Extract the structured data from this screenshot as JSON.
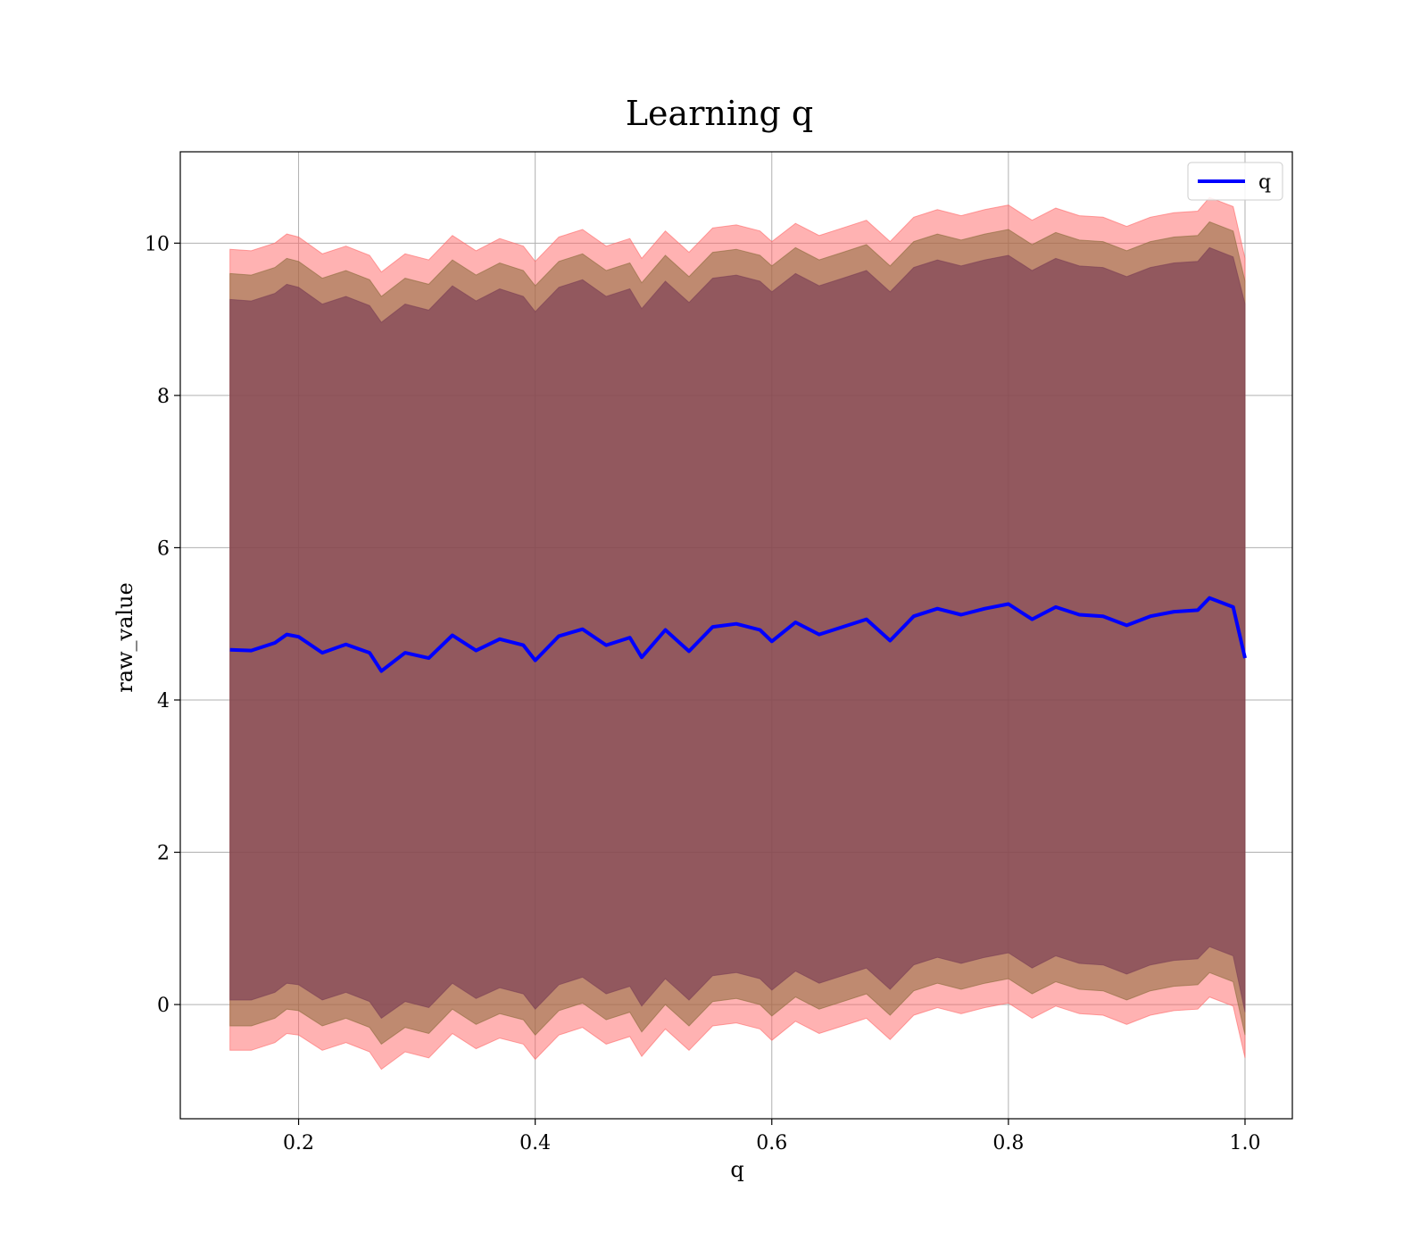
{
  "chart_data": {
    "type": "area",
    "title": "Learning q",
    "xlabel": "q",
    "ylabel": "raw_value",
    "xlim": [
      0.1,
      1.04
    ],
    "ylim": [
      -1.5,
      11.2
    ],
    "xticks": [
      0.2,
      0.4,
      0.6,
      0.8,
      1.0
    ],
    "xtick_labels": [
      "0.2",
      "0.4",
      "0.6",
      "0.8",
      "1.0"
    ],
    "yticks": [
      0,
      2,
      4,
      6,
      8,
      10
    ],
    "ytick_labels": [
      "0",
      "2",
      "4",
      "6",
      "8",
      "10"
    ],
    "grid": true,
    "legend": {
      "position": "top-right",
      "entries": [
        "q"
      ]
    },
    "series": [
      {
        "name": "q",
        "color": "#0000ff",
        "x": [
          0.142,
          0.16,
          0.18,
          0.19,
          0.2,
          0.22,
          0.24,
          0.26,
          0.27,
          0.29,
          0.31,
          0.33,
          0.35,
          0.37,
          0.39,
          0.4,
          0.42,
          0.44,
          0.46,
          0.48,
          0.49,
          0.51,
          0.53,
          0.55,
          0.57,
          0.59,
          0.6,
          0.62,
          0.64,
          0.66,
          0.68,
          0.7,
          0.72,
          0.74,
          0.76,
          0.78,
          0.8,
          0.82,
          0.84,
          0.86,
          0.88,
          0.9,
          0.92,
          0.94,
          0.96,
          0.97,
          0.99,
          1.0
        ],
        "y": [
          4.66,
          4.65,
          4.75,
          4.86,
          4.83,
          4.62,
          4.73,
          4.62,
          4.38,
          4.62,
          4.55,
          4.85,
          4.65,
          4.8,
          4.72,
          4.52,
          4.84,
          4.93,
          4.72,
          4.82,
          4.56,
          4.92,
          4.64,
          4.96,
          5.0,
          4.92,
          4.77,
          5.02,
          4.86,
          4.96,
          5.06,
          4.78,
          5.1,
          5.2,
          5.12,
          5.2,
          5.26,
          5.06,
          5.22,
          5.12,
          5.1,
          4.98,
          5.1,
          5.16,
          5.18,
          5.34,
          5.22,
          4.55
        ]
      }
    ],
    "bands": [
      {
        "name": "",
        "color": "#ff6666",
        "opacity": 0.5,
        "x": [
          0.142,
          0.16,
          0.18,
          0.19,
          0.2,
          0.22,
          0.24,
          0.26,
          0.27,
          0.29,
          0.31,
          0.33,
          0.35,
          0.37,
          0.39,
          0.4,
          0.42,
          0.44,
          0.46,
          0.48,
          0.49,
          0.51,
          0.53,
          0.55,
          0.57,
          0.59,
          0.6,
          0.62,
          0.64,
          0.66,
          0.68,
          0.7,
          0.72,
          0.74,
          0.76,
          0.78,
          0.8,
          0.82,
          0.84,
          0.86,
          0.88,
          0.9,
          0.92,
          0.94,
          0.96,
          0.97,
          0.99,
          1.0
        ],
        "lower": [
          -0.6,
          -0.6,
          -0.5,
          -0.38,
          -0.4,
          -0.6,
          -0.5,
          -0.62,
          -0.85,
          -0.62,
          -0.7,
          -0.38,
          -0.58,
          -0.44,
          -0.52,
          -0.72,
          -0.4,
          -0.3,
          -0.52,
          -0.42,
          -0.68,
          -0.32,
          -0.6,
          -0.28,
          -0.24,
          -0.32,
          -0.47,
          -0.22,
          -0.38,
          -0.28,
          -0.18,
          -0.46,
          -0.14,
          -0.04,
          -0.12,
          -0.04,
          0.02,
          -0.18,
          -0.02,
          -0.12,
          -0.14,
          -0.26,
          -0.14,
          -0.08,
          -0.06,
          0.1,
          -0.02,
          -0.7
        ],
        "upper": [
          9.92,
          9.9,
          10.0,
          10.12,
          10.08,
          9.86,
          9.96,
          9.84,
          9.62,
          9.86,
          9.78,
          10.1,
          9.9,
          10.06,
          9.96,
          9.76,
          10.08,
          10.18,
          9.96,
          10.06,
          9.8,
          10.16,
          9.88,
          10.2,
          10.24,
          10.16,
          10.02,
          10.26,
          10.1,
          10.2,
          10.3,
          10.02,
          10.34,
          10.44,
          10.36,
          10.44,
          10.5,
          10.3,
          10.46,
          10.36,
          10.34,
          10.22,
          10.34,
          10.4,
          10.42,
          10.6,
          10.48,
          9.8
        ]
      },
      {
        "name": "",
        "color": "#8a6a3a",
        "opacity": 0.55,
        "x": [
          0.142,
          0.16,
          0.18,
          0.19,
          0.2,
          0.22,
          0.24,
          0.26,
          0.27,
          0.29,
          0.31,
          0.33,
          0.35,
          0.37,
          0.39,
          0.4,
          0.42,
          0.44,
          0.46,
          0.48,
          0.49,
          0.51,
          0.53,
          0.55,
          0.57,
          0.59,
          0.6,
          0.62,
          0.64,
          0.66,
          0.68,
          0.7,
          0.72,
          0.74,
          0.76,
          0.78,
          0.8,
          0.82,
          0.84,
          0.86,
          0.88,
          0.9,
          0.92,
          0.94,
          0.96,
          0.97,
          0.99,
          1.0
        ],
        "lower": [
          -0.28,
          -0.28,
          -0.18,
          -0.06,
          -0.08,
          -0.28,
          -0.18,
          -0.3,
          -0.52,
          -0.3,
          -0.38,
          -0.06,
          -0.26,
          -0.12,
          -0.2,
          -0.4,
          -0.08,
          0.02,
          -0.2,
          -0.1,
          -0.36,
          0.0,
          -0.28,
          0.04,
          0.08,
          0.0,
          -0.15,
          0.1,
          -0.06,
          0.04,
          0.14,
          -0.14,
          0.18,
          0.28,
          0.2,
          0.28,
          0.34,
          0.14,
          0.3,
          0.2,
          0.18,
          0.06,
          0.18,
          0.24,
          0.26,
          0.42,
          0.3,
          -0.4
        ],
        "upper": [
          9.6,
          9.58,
          9.68,
          9.8,
          9.76,
          9.54,
          9.64,
          9.52,
          9.3,
          9.54,
          9.46,
          9.78,
          9.58,
          9.74,
          9.64,
          9.44,
          9.76,
          9.86,
          9.64,
          9.74,
          9.48,
          9.84,
          9.56,
          9.88,
          9.92,
          9.84,
          9.7,
          9.94,
          9.78,
          9.88,
          9.98,
          9.7,
          10.02,
          10.12,
          10.04,
          10.12,
          10.18,
          9.98,
          10.14,
          10.04,
          10.02,
          9.9,
          10.02,
          10.08,
          10.1,
          10.28,
          10.16,
          9.5
        ]
      },
      {
        "name": "",
        "color": "#7a3d55",
        "opacity": 0.65,
        "x": [
          0.142,
          0.16,
          0.18,
          0.19,
          0.2,
          0.22,
          0.24,
          0.26,
          0.27,
          0.29,
          0.31,
          0.33,
          0.35,
          0.37,
          0.39,
          0.4,
          0.42,
          0.44,
          0.46,
          0.48,
          0.49,
          0.51,
          0.53,
          0.55,
          0.57,
          0.59,
          0.6,
          0.62,
          0.64,
          0.66,
          0.68,
          0.7,
          0.72,
          0.74,
          0.76,
          0.78,
          0.8,
          0.82,
          0.84,
          0.86,
          0.88,
          0.9,
          0.92,
          0.94,
          0.96,
          0.97,
          0.99,
          1.0
        ],
        "lower": [
          0.06,
          0.06,
          0.16,
          0.28,
          0.26,
          0.06,
          0.16,
          0.04,
          -0.18,
          0.04,
          -0.04,
          0.28,
          0.08,
          0.22,
          0.14,
          -0.06,
          0.26,
          0.36,
          0.14,
          0.24,
          -0.02,
          0.34,
          0.06,
          0.38,
          0.42,
          0.34,
          0.19,
          0.44,
          0.28,
          0.38,
          0.48,
          0.2,
          0.52,
          0.62,
          0.54,
          0.62,
          0.68,
          0.48,
          0.64,
          0.54,
          0.52,
          0.4,
          0.52,
          0.58,
          0.6,
          0.76,
          0.64,
          -0.1
        ],
        "upper": [
          9.26,
          9.24,
          9.34,
          9.46,
          9.42,
          9.2,
          9.3,
          9.18,
          8.96,
          9.2,
          9.12,
          9.44,
          9.24,
          9.4,
          9.3,
          9.1,
          9.42,
          9.52,
          9.3,
          9.4,
          9.14,
          9.5,
          9.22,
          9.54,
          9.58,
          9.5,
          9.36,
          9.6,
          9.44,
          9.54,
          9.64,
          9.36,
          9.68,
          9.78,
          9.7,
          9.78,
          9.84,
          9.64,
          9.8,
          9.7,
          9.68,
          9.56,
          9.68,
          9.74,
          9.76,
          9.94,
          9.82,
          9.2
        ]
      }
    ]
  }
}
